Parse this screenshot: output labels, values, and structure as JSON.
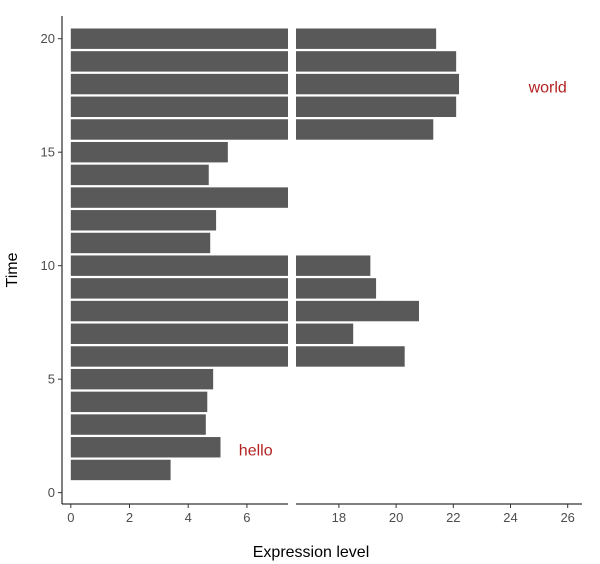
{
  "chart_data": {
    "type": "bar",
    "orientation": "horizontal",
    "xlabel": "Expression level",
    "ylabel": "Time",
    "x_axis_break": {
      "from": 7.4,
      "to": 16.5
    },
    "xlim": [
      -0.3,
      26.5
    ],
    "ylim": [
      -0.5,
      21.0
    ],
    "x_ticks": [
      0,
      2,
      4,
      6,
      18,
      20,
      22,
      24,
      26
    ],
    "y_ticks": [
      0,
      5,
      10,
      15,
      20
    ],
    "grid": false,
    "bar_color": "#595959",
    "annotation_color": "#b22222",
    "categories": [
      1,
      2,
      3,
      4,
      5,
      6,
      7,
      8,
      9,
      10,
      11,
      12,
      13,
      14,
      15,
      16,
      17,
      18,
      19,
      20
    ],
    "values": [
      3.4,
      5.1,
      4.6,
      4.65,
      4.85,
      20.3,
      18.5,
      20.8,
      19.3,
      19.1,
      4.75,
      4.95,
      7.4,
      4.7,
      5.35,
      21.3,
      22.1,
      22.2,
      22.1,
      21.4
    ],
    "annotations": [
      {
        "text": "hello",
        "x": 6.3,
        "y": 1.9
      },
      {
        "text": "world",
        "x": 25.3,
        "y": 17.9
      }
    ]
  }
}
